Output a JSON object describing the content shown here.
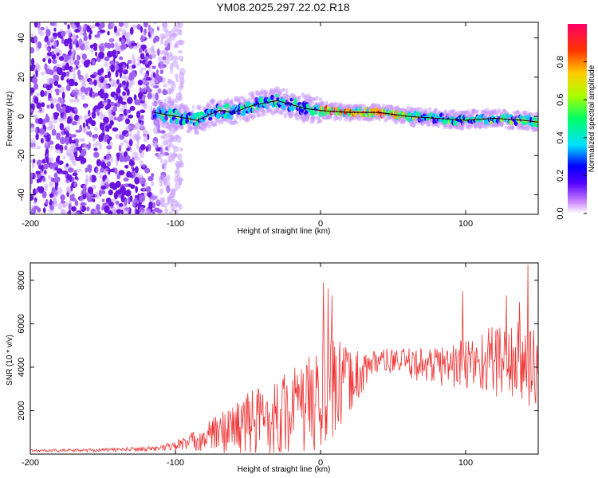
{
  "title": "YM08.2025.297.22.02.R18",
  "chart_data": [
    {
      "type": "heatmap",
      "name": "spectrogram",
      "xlabel": "Height of straight line (km)",
      "ylabel": "Frequency (Hz)",
      "xlim": [
        -200,
        150
      ],
      "ylim": [
        -50,
        48
      ],
      "xticks": [
        -200,
        -100,
        0,
        100
      ],
      "yticks": [
        -40,
        -20,
        0,
        20,
        40
      ],
      "colorbar": {
        "label": "Normalized spectral amplitude",
        "range": [
          0,
          1
        ],
        "ticks": [
          0.0,
          0.2,
          0.4,
          0.6,
          0.8
        ],
        "tick_labels": [
          "0.0",
          "0.2",
          "0.4",
          "0.6",
          "0.8"
        ]
      },
      "ridge_trace": [
        {
          "x": -115,
          "y": 2
        },
        {
          "x": -100,
          "y": 0
        },
        {
          "x": -85,
          "y": -2
        },
        {
          "x": -70,
          "y": 3
        },
        {
          "x": -60,
          "y": 2
        },
        {
          "x": -45,
          "y": 6
        },
        {
          "x": -30,
          "y": 8
        },
        {
          "x": -20,
          "y": 6
        },
        {
          "x": -10,
          "y": 4
        },
        {
          "x": 0,
          "y": 3
        },
        {
          "x": 20,
          "y": 2
        },
        {
          "x": 40,
          "y": 2
        },
        {
          "x": 60,
          "y": 0
        },
        {
          "x": 80,
          "y": -1
        },
        {
          "x": 100,
          "y": -2
        },
        {
          "x": 120,
          "y": -1
        },
        {
          "x": 140,
          "y": -2
        },
        {
          "x": 150,
          "y": -3
        }
      ],
      "noise_region_x": [
        -200,
        -100
      ]
    },
    {
      "type": "line",
      "name": "snr",
      "xlabel": "Height of straight line (km)",
      "ylabel": "SNR (10 * v/v)",
      "xlim": [
        -200,
        150
      ],
      "ylim": [
        0,
        8800
      ],
      "xticks": [
        -200,
        -100,
        0,
        100
      ],
      "yticks": [
        2000,
        4000,
        6000,
        8000
      ],
      "color": "#ee3333",
      "envelope": [
        {
          "x": -200,
          "mean": 150,
          "amp": 60
        },
        {
          "x": -150,
          "mean": 180,
          "amp": 80
        },
        {
          "x": -110,
          "mean": 250,
          "amp": 120
        },
        {
          "x": -90,
          "mean": 500,
          "amp": 400
        },
        {
          "x": -70,
          "mean": 900,
          "amp": 900
        },
        {
          "x": -50,
          "mean": 1300,
          "amp": 1500
        },
        {
          "x": -30,
          "mean": 1600,
          "amp": 1800
        },
        {
          "x": -10,
          "mean": 2000,
          "amp": 2200
        },
        {
          "x": 5,
          "mean": 2500,
          "amp": 2800
        },
        {
          "x": 20,
          "mean": 3200,
          "amp": 1500
        },
        {
          "x": 40,
          "mean": 4300,
          "amp": 500
        },
        {
          "x": 60,
          "mean": 4100,
          "amp": 700
        },
        {
          "x": 80,
          "mean": 4000,
          "amp": 900
        },
        {
          "x": 100,
          "mean": 4000,
          "amp": 1300
        },
        {
          "x": 120,
          "mean": 4200,
          "amp": 1700
        },
        {
          "x": 150,
          "mean": 3800,
          "amp": 2200
        }
      ],
      "peaks": [
        {
          "x": 2,
          "y": 7900
        },
        {
          "x": 5,
          "y": 7600
        },
        {
          "x": 8,
          "y": 7300
        },
        {
          "x": 98,
          "y": 7500
        },
        {
          "x": 128,
          "y": 7300
        },
        {
          "x": 137,
          "y": 7000
        },
        {
          "x": 143,
          "y": 8700
        }
      ]
    }
  ]
}
